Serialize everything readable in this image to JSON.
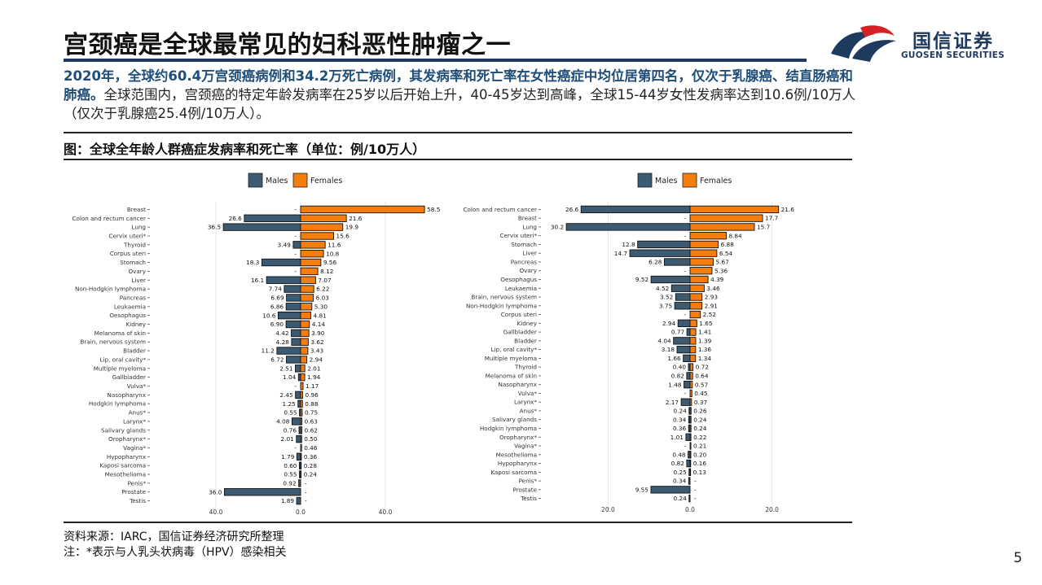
{
  "header": {
    "title": "宫颈癌是全球最常见的妇科恶性肿瘤之一",
    "logo_cn": "国信证券",
    "logo_en": "GUOSEN SECURITIES"
  },
  "summary": {
    "highlight": "2020年，全球约60.4万宫颈癌病例和34.2万死亡病例，其发病率和死亡率在女性癌症中均位居第四名，仅次于乳腺癌、结直肠癌和肺癌。",
    "rest": "全球范围内，宫颈癌的特定年龄发病率在25岁以后开始上升，40-45岁达到高峰，全球15-44岁女性发病率达到10.6例/10万人（仅次于乳腺癌25.4例/10万人）。"
  },
  "figure": {
    "title": "图：全球全年龄人群癌症发病率和死亡率（单位：例/10万人）"
  },
  "footer": {
    "source": "资料来源：IARC，国信证券经济研究所整理",
    "note": "注：*表示与人乳头状病毒（HPV）感染相关",
    "page": "5"
  },
  "colors": {
    "males": "#3d5a73",
    "females": "#f47d0e",
    "accent": "#1f3a5f",
    "logo_red": "#d71f26"
  },
  "chart_data": [
    {
      "type": "bar",
      "orientation": "horizontal-diverging",
      "legend": [
        "Males",
        "Females"
      ],
      "legend_position": "top",
      "xticks": [
        40.0,
        0.0,
        40.0
      ],
      "xlim": [
        -45,
        60
      ],
      "grid": true,
      "categories": [
        "Breast",
        "Colon and rectum cancer",
        "Lung",
        "Cervix uteri*",
        "Thyroid",
        "Corpus uteri",
        "Stomach",
        "Ovary",
        "Liver",
        "Non-Hodgkin lymphoma",
        "Pancreas",
        "Leukaemia",
        "Oesophagus",
        "Kidney",
        "Melanoma of skin",
        "Brain, nervous system",
        "Bladder",
        "Lip, oral cavity*",
        "Multiple myeloma",
        "Gallbladder",
        "Vulva*",
        "Nasopharynx",
        "Hodgkin lymphoma",
        "Anus*",
        "Larynx*",
        "Salivary glands",
        "Oropharynx*",
        "Vagina*",
        "Hypopharynx",
        "Kaposi sarcoma",
        "Mesothelioma",
        "Penis*",
        "Prostate",
        "Testis"
      ],
      "males": [
        null,
        26.6,
        36.5,
        null,
        3.49,
        null,
        18.3,
        null,
        16.1,
        7.74,
        6.69,
        6.86,
        10.6,
        6.9,
        4.42,
        4.28,
        11.2,
        6.72,
        2.51,
        1.04,
        null,
        2.45,
        1.25,
        0.55,
        4.08,
        0.76,
        2.01,
        null,
        1.79,
        0.6,
        0.55,
        0.92,
        36.0,
        1.89
      ],
      "females": [
        58.5,
        21.6,
        19.9,
        15.6,
        11.6,
        10.8,
        9.56,
        8.12,
        7.07,
        6.22,
        6.03,
        5.3,
        4.81,
        4.14,
        3.9,
        3.62,
        3.43,
        2.94,
        2.01,
        1.94,
        1.17,
        0.96,
        0.88,
        0.75,
        0.63,
        0.62,
        0.5,
        0.46,
        0.36,
        0.28,
        0.24,
        null,
        null,
        null
      ],
      "males_labels": [
        "-",
        "26.6",
        "36.5",
        "-",
        "3.49",
        "-",
        "18.3",
        "-",
        "16.1",
        "7.74",
        "6.69",
        "6.86",
        "10.6",
        "6.90",
        "4.42",
        "4.28",
        "11.2",
        "6.72",
        "2.51",
        "1.04",
        "-",
        "2.45",
        "1.25",
        "0.55",
        "4.08",
        "0.76",
        "2.01",
        "-",
        "1.79",
        "0.60",
        "0.55",
        "0.92",
        "36.0",
        "1.89"
      ],
      "females_labels": [
        "58.5",
        "21.6",
        "19.9",
        "15.6",
        "11.6",
        "10.8",
        "9.56",
        "8.12",
        "7.07",
        "6.22",
        "6.03",
        "5.30",
        "4.81",
        "4.14",
        "3.90",
        "3.62",
        "3.43",
        "2.94",
        "2.01",
        "1.94",
        "1.17",
        "0.96",
        "0.88",
        "0.75",
        "0.63",
        "0.62",
        "0.50",
        "0.46",
        "0.36",
        "0.28",
        "0.24",
        "-",
        "-",
        "-"
      ]
    },
    {
      "type": "bar",
      "orientation": "horizontal-diverging",
      "legend": [
        "Males",
        "Females"
      ],
      "legend_position": "top",
      "xticks": [
        20.0,
        0.0,
        20.0
      ],
      "xlim": [
        -30.5,
        30.5
      ],
      "grid": true,
      "categories": [
        "Colon and rectum cancer",
        "Breast",
        "Lung",
        "Cervix uteri*",
        "Stomach",
        "Liver",
        "Pancreas",
        "Ovary",
        "Oesophagus",
        "Leukaemia",
        "Brain, nervous system",
        "Non-Hodgkin lymphoma",
        "Corpus uteri",
        "Kidney",
        "Gallbladder",
        "Bladder",
        "Lip, oral cavity*",
        "Multiple myeloma",
        "Thyroid",
        "Melanoma of skin",
        "Nasopharynx",
        "Vulva*",
        "Larynx*",
        "Anus*",
        "Salivary glands",
        "Hodgkin lymphoma",
        "Oropharynx*",
        "Vagina*",
        "Mesothelioma",
        "Hypopharynx",
        "Kaposi sarcoma",
        "Penis*",
        "Prostate",
        "Testis"
      ],
      "males": [
        26.6,
        null,
        30.2,
        null,
        12.8,
        14.7,
        6.28,
        null,
        9.52,
        4.52,
        3.52,
        3.75,
        null,
        2.94,
        0.77,
        4.04,
        3.18,
        1.66,
        0.4,
        0.82,
        1.48,
        null,
        2.17,
        0.24,
        0.34,
        0.36,
        1.01,
        null,
        0.48,
        0.82,
        0.25,
        0.34,
        9.55,
        0.24
      ],
      "females": [
        21.6,
        17.7,
        15.7,
        8.84,
        6.88,
        6.54,
        5.67,
        5.36,
        4.39,
        3.46,
        2.93,
        2.91,
        2.52,
        1.65,
        1.41,
        1.39,
        1.36,
        1.34,
        0.72,
        0.64,
        0.57,
        0.45,
        0.37,
        0.26,
        0.24,
        0.24,
        0.22,
        0.21,
        0.2,
        0.16,
        0.13,
        null,
        null,
        null
      ],
      "males_labels": [
        "26.6",
        "-",
        "30.2",
        "-",
        "12.8",
        "14.7",
        "6.28",
        "-",
        "9.52",
        "4.52",
        "3.52",
        "3.75",
        "-",
        "2.94",
        "0.77",
        "4.04",
        "3.18",
        "1.66",
        "0.40",
        "0.82",
        "1.48",
        "-",
        "2.17",
        "0.24",
        "0.34",
        "0.36",
        "1.01",
        "-",
        "0.48",
        "0.82",
        "0.25",
        "0.34",
        "9.55",
        "0.24"
      ],
      "females_labels": [
        "21.6",
        "17.7",
        "15.7",
        "8.84",
        "6.88",
        "6.54",
        "5.67",
        "5.36",
        "4.39",
        "3.46",
        "2.93",
        "2.91",
        "2.52",
        "1.65",
        "1.41",
        "1.39",
        "1.36",
        "1.34",
        "0.72",
        "0.64",
        "0.57",
        "0.45",
        "0.37",
        "0.26",
        "0.24",
        "0.24",
        "0.22",
        "0.21",
        "0.20",
        "0.16",
        "0.13",
        "-",
        "-",
        "-"
      ]
    }
  ]
}
